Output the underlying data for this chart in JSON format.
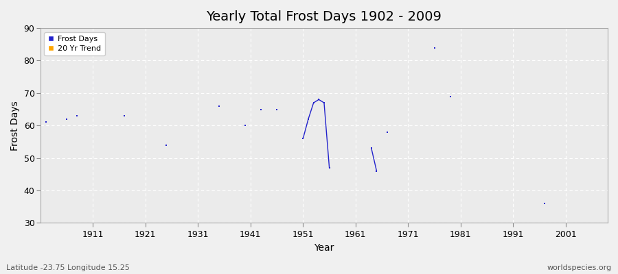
{
  "title": "Yearly Total Frost Days 1902 - 2009",
  "xlabel": "Year",
  "ylabel": "Frost Days",
  "xlim": [
    1901,
    2009
  ],
  "ylim": [
    30,
    90
  ],
  "yticks": [
    30,
    40,
    50,
    60,
    70,
    80,
    90
  ],
  "xticks": [
    1911,
    1921,
    1931,
    1941,
    1951,
    1961,
    1971,
    1981,
    1991,
    2001
  ],
  "fig_bg_color": "#f0f0f0",
  "plot_bg_color": "#ebebeb",
  "scatter_color": "#2222cc",
  "scatter_size": 4,
  "frost_days_x": [
    1902,
    1906,
    1908,
    1917,
    1925,
    1935,
    1940,
    1943,
    1946,
    1951,
    1952,
    1953,
    1954,
    1955,
    1956,
    1964,
    1965,
    1967,
    1976,
    1979,
    1997
  ],
  "frost_days_y": [
    61,
    62,
    63,
    63,
    54,
    66,
    60,
    65,
    65,
    56,
    62,
    67,
    68,
    67,
    47,
    53,
    46,
    58,
    84,
    69,
    36
  ],
  "line_segment_1": {
    "x": [
      1951,
      1952,
      1953,
      1954,
      1955,
      1956
    ],
    "y": [
      56,
      62,
      67,
      68,
      67,
      47
    ]
  },
  "line_segment_2": {
    "x": [
      1964,
      1965
    ],
    "y": [
      53,
      46
    ]
  },
  "legend_labels": [
    "Frost Days",
    "20 Yr Trend"
  ],
  "legend_colors": [
    "#2222cc",
    "#ffa500"
  ],
  "footnote_left": "Latitude -23.75 Longitude 15.25",
  "footnote_right": "worldspecies.org",
  "title_fontsize": 14,
  "axis_label_fontsize": 10,
  "tick_fontsize": 9,
  "footnote_fontsize": 8
}
